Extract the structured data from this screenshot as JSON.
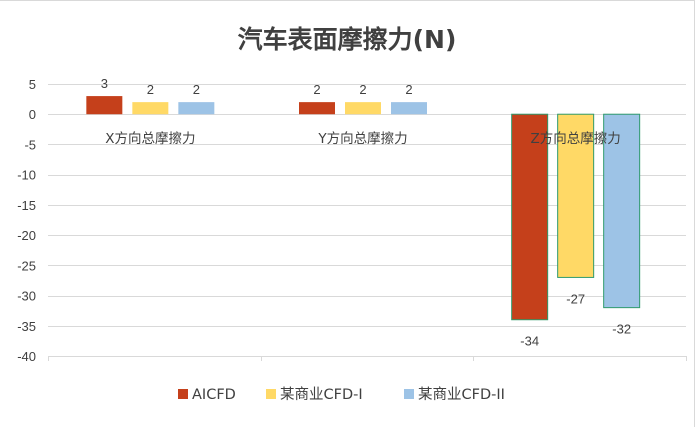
{
  "chart_data": {
    "type": "bar",
    "title": "汽车表面摩擦力(N)",
    "categories": [
      "X方向总摩擦力",
      "Y方向总摩擦力",
      "Z方向总摩擦力"
    ],
    "series": [
      {
        "name": "AICFD",
        "values": [
          3,
          2,
          -34
        ],
        "color": "#C5401B"
      },
      {
        "name": "某商业CFD-I",
        "values": [
          2,
          2,
          -27
        ],
        "color": "#FFD966"
      },
      {
        "name": "某商业CFD-II",
        "values": [
          2,
          2,
          -32
        ],
        "color": "#9DC3E6"
      }
    ],
    "yticks": [
      5,
      0,
      -5,
      -10,
      -15,
      -20,
      -25,
      -30,
      -35,
      -40
    ],
    "ylim": [
      -40,
      5
    ],
    "grid": true,
    "legend_position": "bottom",
    "xlabel": "",
    "ylabel": ""
  }
}
